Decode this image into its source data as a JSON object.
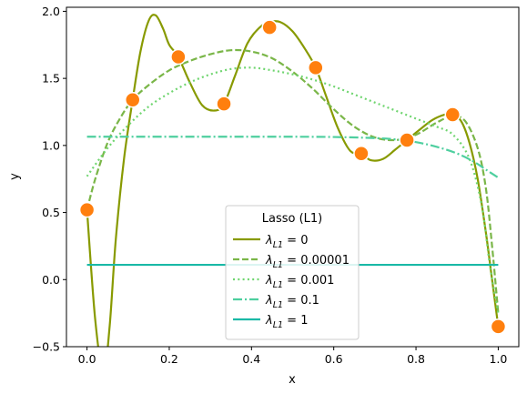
{
  "chart_data": {
    "type": "line",
    "xlabel": "x",
    "ylabel": "y",
    "xlim": [
      -0.05,
      1.05
    ],
    "ylim": [
      -0.5,
      2.03
    ],
    "xticks": [
      0.0,
      0.2,
      0.4,
      0.6,
      0.8,
      1.0
    ],
    "xtick_labels": [
      "0.0",
      "0.2",
      "0.4",
      "0.6",
      "0.8",
      "1.0"
    ],
    "yticks": [
      -0.5,
      0.0,
      0.5,
      1.0,
      1.5,
      2.0
    ],
    "ytick_labels": [
      "−0.5",
      "0.0",
      "0.5",
      "1.0",
      "1.5",
      "2.0"
    ],
    "grid": false,
    "legend": {
      "title": "Lasso (L1)",
      "placement": "lower-center",
      "labels": [
        "λL1 = 0",
        "λL1 = 0.00001",
        "λL1 = 0.001",
        "λL1 = 0.1",
        "λL1 = 1"
      ],
      "label_prefix": "λ",
      "label_subscript": "L1",
      "label_values": [
        "0",
        "0.00001",
        "0.001",
        "0.1",
        "1"
      ]
    },
    "scatter_points": {
      "color": "#ff7f0e",
      "x": [
        0.0,
        0.111,
        0.222,
        0.333,
        0.444,
        0.556,
        0.667,
        0.778,
        0.889,
        1.0
      ],
      "y": [
        0.52,
        1.34,
        1.66,
        1.31,
        1.88,
        1.58,
        0.94,
        1.04,
        1.23,
        -0.35
      ]
    },
    "series": [
      {
        "style": "solid",
        "color": "#889a00",
        "x": [
          0.0,
          0.02,
          0.04,
          0.055,
          0.07,
          0.09,
          0.111,
          0.13,
          0.15,
          0.167,
          0.185,
          0.2,
          0.222,
          0.25,
          0.28,
          0.31,
          0.333,
          0.36,
          0.39,
          0.42,
          0.444,
          0.47,
          0.5,
          0.53,
          0.556,
          0.58,
          0.61,
          0.64,
          0.667,
          0.69,
          0.72,
          0.75,
          0.778,
          0.81,
          0.84,
          0.87,
          0.889,
          0.91,
          0.93,
          0.95,
          0.97,
          0.985,
          1.0
        ],
        "y": [
          0.52,
          -0.3,
          -0.7,
          -0.35,
          0.3,
          0.9,
          1.34,
          1.7,
          1.93,
          1.97,
          1.87,
          1.75,
          1.66,
          1.47,
          1.3,
          1.26,
          1.31,
          1.52,
          1.76,
          1.88,
          1.92,
          1.92,
          1.85,
          1.72,
          1.58,
          1.38,
          1.13,
          0.96,
          0.94,
          0.89,
          0.9,
          0.97,
          1.04,
          1.12,
          1.19,
          1.23,
          1.23,
          1.18,
          1.02,
          0.75,
          0.35,
          0.0,
          -0.35
        ]
      },
      {
        "style": "dashed",
        "color": "#7ab648",
        "x": [
          0.0,
          0.02,
          0.05,
          0.08,
          0.111,
          0.15,
          0.2,
          0.25,
          0.3,
          0.35,
          0.4,
          0.45,
          0.5,
          0.55,
          0.6,
          0.65,
          0.7,
          0.75,
          0.8,
          0.85,
          0.889,
          0.92,
          0.95,
          0.97,
          0.985,
          1.0
        ],
        "y": [
          0.52,
          0.75,
          1.02,
          1.2,
          1.34,
          1.45,
          1.56,
          1.63,
          1.68,
          1.71,
          1.7,
          1.65,
          1.55,
          1.42,
          1.27,
          1.14,
          1.06,
          1.04,
          1.08,
          1.17,
          1.22,
          1.18,
          0.98,
          0.68,
          0.25,
          -0.25
        ]
      },
      {
        "style": "dotted",
        "color": "#6fd56f",
        "x": [
          0.0,
          0.05,
          0.1,
          0.15,
          0.2,
          0.25,
          0.3,
          0.35,
          0.4,
          0.45,
          0.5,
          0.55,
          0.6,
          0.65,
          0.7,
          0.75,
          0.8,
          0.85,
          0.89,
          0.93,
          0.96,
          0.98,
          1.0
        ],
        "y": [
          0.77,
          0.98,
          1.15,
          1.29,
          1.39,
          1.47,
          1.53,
          1.57,
          1.58,
          1.56,
          1.53,
          1.49,
          1.44,
          1.38,
          1.32,
          1.26,
          1.2,
          1.14,
          1.08,
          0.9,
          0.55,
          0.1,
          -0.25
        ]
      },
      {
        "style": "dashdot",
        "color": "#4ecf9f",
        "x": [
          0.0,
          0.1,
          0.2,
          0.3,
          0.4,
          0.5,
          0.6,
          0.7,
          0.75,
          0.8,
          0.85,
          0.9,
          0.94,
          0.97,
          1.0
        ],
        "y": [
          1.065,
          1.065,
          1.065,
          1.065,
          1.065,
          1.065,
          1.063,
          1.055,
          1.045,
          1.025,
          0.99,
          0.94,
          0.88,
          0.82,
          0.76
        ]
      },
      {
        "style": "solid",
        "color": "#1ab9a6",
        "x": [
          0.0,
          1.0
        ],
        "y": [
          0.11,
          0.11
        ]
      }
    ]
  }
}
